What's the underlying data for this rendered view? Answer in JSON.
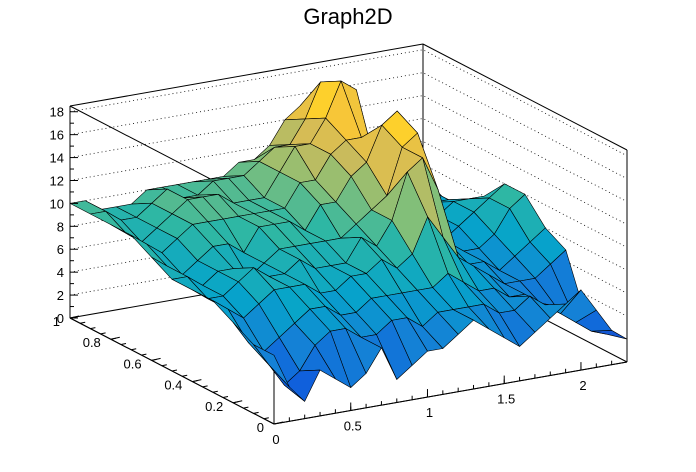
{
  "chart_data": {
    "type": "surface",
    "title": "Graph2D",
    "xlabel": "",
    "ylabel": "",
    "zlabel": "",
    "xlim": [
      0,
      2.3
    ],
    "ylim": [
      0,
      1
    ],
    "zlim": [
      0,
      18.5
    ],
    "x_ticks": [
      "0",
      "0.5",
      "1",
      "1.5",
      "2"
    ],
    "y_ticks": [
      "0",
      "0.2",
      "0.4",
      "0.6",
      "0.8",
      "1"
    ],
    "z_ticks": [
      "0",
      "2",
      "4",
      "6",
      "8",
      "10",
      "12",
      "14",
      "16",
      "18"
    ],
    "grid": true,
    "colormap": [
      "#352a87",
      "#0f5cdd",
      "#1481d6",
      "#06a4ca",
      "#2eb7a4",
      "#87bf77",
      "#d1bb59",
      "#fec832",
      "#f9fb0e"
    ],
    "grid_x": [
      0,
      0.1,
      0.2,
      0.3,
      0.4,
      0.5,
      0.6,
      0.7,
      0.8,
      0.9,
      1.0,
      1.1,
      1.2,
      1.3,
      1.4,
      1.5,
      1.6,
      1.7,
      1.8,
      1.9,
      2.0,
      2.1,
      2.2,
      2.3
    ],
    "grid_y": [
      0,
      0.1,
      0.2,
      0.3,
      0.4,
      0.5,
      0.6,
      0.7,
      0.8,
      0.9,
      1.0
    ],
    "z": [
      [
        6,
        3,
        1.5,
        4,
        3,
        2,
        3,
        5,
        2,
        3,
        4,
        4,
        5,
        6,
        5,
        4,
        3,
        4,
        5,
        6,
        7,
        5,
        3,
        2
      ],
      [
        6,
        4,
        2,
        3,
        5,
        6,
        6,
        5,
        5,
        6,
        6,
        5,
        6,
        6,
        6,
        6,
        5,
        5,
        6,
        5,
        4,
        3,
        2,
        1.5
      ],
      [
        7,
        5,
        4,
        5,
        6,
        7,
        7,
        6,
        6,
        7,
        7,
        7,
        7,
        7,
        8,
        7,
        6,
        6,
        5,
        5,
        4,
        3.5,
        3,
        2
      ],
      [
        8,
        7,
        6,
        7,
        8,
        8,
        8,
        7,
        7,
        8,
        8,
        9,
        8,
        9,
        12,
        10,
        8,
        7,
        6,
        5,
        5,
        5,
        6,
        7
      ],
      [
        8,
        7,
        7,
        8,
        9,
        8,
        8,
        9,
        8,
        8,
        8,
        10,
        9,
        11,
        15,
        16,
        13,
        7,
        6,
        6,
        5,
        6,
        7,
        8
      ],
      [
        8,
        8,
        7,
        8,
        8,
        7,
        8,
        9,
        9,
        9,
        9,
        9,
        10,
        11,
        12,
        16,
        17,
        8,
        7,
        6,
        6,
        7,
        9,
        10
      ],
      [
        9,
        8,
        7,
        8,
        9,
        9,
        8,
        10,
        10,
        10,
        9,
        11,
        11,
        13,
        14,
        17,
        18,
        7,
        6,
        6,
        7,
        8,
        9,
        10
      ],
      [
        10,
        9,
        8,
        9,
        10,
        10,
        10,
        10,
        10,
        10,
        10,
        12,
        12,
        14,
        15,
        15,
        12,
        8,
        7,
        7,
        7,
        8,
        8,
        8
      ],
      [
        10,
        9,
        8,
        9,
        10,
        11,
        11,
        11,
        10,
        10,
        10,
        12,
        14,
        14,
        16,
        19,
        18,
        9,
        8,
        7,
        7,
        7,
        7,
        6
      ],
      [
        10,
        10,
        9,
        9,
        10,
        11,
        10,
        10,
        11,
        11,
        11,
        12,
        13,
        13,
        15,
        18,
        17,
        10,
        9,
        8,
        8,
        7,
        7,
        6
      ],
      [
        10,
        10,
        9,
        9,
        9,
        10,
        10,
        10,
        10,
        10,
        10,
        11,
        11,
        12,
        14,
        15,
        14,
        10,
        9,
        8,
        8,
        8,
        7,
        7
      ]
    ]
  }
}
